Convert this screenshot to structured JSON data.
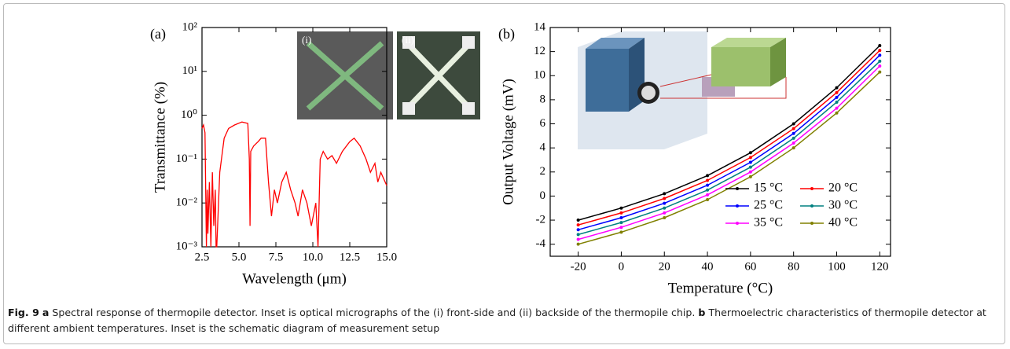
{
  "chart_data": [
    {
      "type": "line",
      "label": "(a)",
      "x_label": "Wavelength (μm)",
      "y_label": "Transmittance (%)",
      "inset_labels": [
        "(i)",
        "(ii)"
      ],
      "log_y": true,
      "color": "#ff0000",
      "xlim": [
        2.5,
        15
      ],
      "ylim": [
        0.001,
        100
      ],
      "xticks": [
        2.5,
        {
          "value": 5,
          "label": "5.0"
        },
        {
          "value": 7.5,
          "label": "7.5"
        },
        {
          "value": 10,
          "label": "10.0"
        },
        12.5,
        {
          "value": 15,
          "label": "15.0"
        }
      ],
      "yticks": [
        {
          "value": 0.001,
          "label": "10⁻³"
        },
        {
          "value": 0.01,
          "label": "10⁻²"
        },
        {
          "value": 0.1,
          "label": "10⁻¹"
        },
        {
          "value": 1,
          "label": "10⁰"
        },
        {
          "value": 10,
          "label": "10¹"
        },
        {
          "value": 100,
          "label": "10²"
        }
      ],
      "x": [
        2.5,
        2.6,
        2.7,
        2.8,
        2.85,
        2.9,
        3.0,
        3.1,
        3.2,
        3.3,
        3.4,
        3.45,
        3.5,
        3.7,
        4.0,
        4.3,
        4.7,
        5.2,
        5.6,
        5.7,
        5.75,
        5.8,
        6.0,
        6.3,
        6.5,
        6.8,
        7.0,
        7.2,
        7.4,
        7.6,
        7.9,
        8.2,
        8.5,
        8.8,
        9.0,
        9.3,
        9.6,
        9.9,
        10.2,
        10.35,
        10.5,
        10.7,
        11.0,
        11.3,
        11.6,
        12.0,
        12.5,
        12.8,
        13.2,
        13.6,
        13.9,
        14.2,
        14.4,
        14.6,
        15.0
      ],
      "values": [
        0.5,
        0.6,
        0.4,
        0.001,
        0.02,
        0.002,
        0.03,
        0.001,
        0.05,
        0.003,
        0.02,
        0.001,
        0.001,
        0.05,
        0.3,
        0.5,
        0.6,
        0.7,
        0.65,
        0.1,
        0.003,
        0.15,
        0.2,
        0.25,
        0.3,
        0.3,
        0.03,
        0.005,
        0.02,
        0.01,
        0.03,
        0.05,
        0.02,
        0.01,
        0.005,
        0.02,
        0.01,
        0.003,
        0.01,
        0.001,
        0.1,
        0.15,
        0.1,
        0.12,
        0.08,
        0.15,
        0.25,
        0.3,
        0.2,
        0.1,
        0.05,
        0.08,
        0.03,
        0.05,
        0.025
      ]
    },
    {
      "type": "line",
      "label": "(b)",
      "x_label": "Temperature (°C)",
      "y_label": "Output Voltage (mV)",
      "legend": "lower right",
      "xlim": [
        -33,
        125
      ],
      "ylim": [
        -5,
        14
      ],
      "xticks": [
        -20,
        0,
        20,
        40,
        60,
        80,
        100,
        120
      ],
      "yticks": [
        -4,
        -2,
        0,
        2,
        4,
        6,
        8,
        10,
        12,
        14
      ],
      "x": [
        -20,
        0,
        20,
        40,
        60,
        80,
        100,
        120
      ],
      "series": [
        {
          "name": "15 °C",
          "color": "#000000",
          "values": [
            -2.0,
            -1.0,
            0.2,
            1.7,
            3.6,
            6.0,
            9.0,
            12.5
          ]
        },
        {
          "name": "20 °C",
          "color": "#ff0000",
          "values": [
            -2.4,
            -1.4,
            -0.2,
            1.3,
            3.2,
            5.6,
            8.6,
            12.1
          ]
        },
        {
          "name": "25 °C",
          "color": "#0000ff",
          "values": [
            -2.8,
            -1.8,
            -0.6,
            0.9,
            2.8,
            5.2,
            8.2,
            11.7
          ]
        },
        {
          "name": "30 °C",
          "color": "#008080",
          "values": [
            -3.2,
            -2.2,
            -1.0,
            0.5,
            2.4,
            4.8,
            7.8,
            11.2
          ]
        },
        {
          "name": "35 °C",
          "color": "#ff00ff",
          "values": [
            -3.6,
            -2.6,
            -1.4,
            0.1,
            2.0,
            4.4,
            7.3,
            10.8
          ]
        },
        {
          "name": "40 °C",
          "color": "#808000",
          "values": [
            -4.0,
            -3.0,
            -1.8,
            -0.3,
            1.6,
            4.0,
            6.9,
            10.3
          ]
        }
      ]
    }
  ],
  "caption": {
    "fig": "Fig. 9",
    "a": "a",
    "a_text": "Spectral response of thermopile detector. Inset is optical micrographs of the (i) front-side and (ii) backside of the thermopile chip.",
    "b": "b",
    "b_text": "Thermoelectric characteristics of thermopile detector at different ambient temperatures. Inset is the schematic diagram of measurement setup"
  }
}
